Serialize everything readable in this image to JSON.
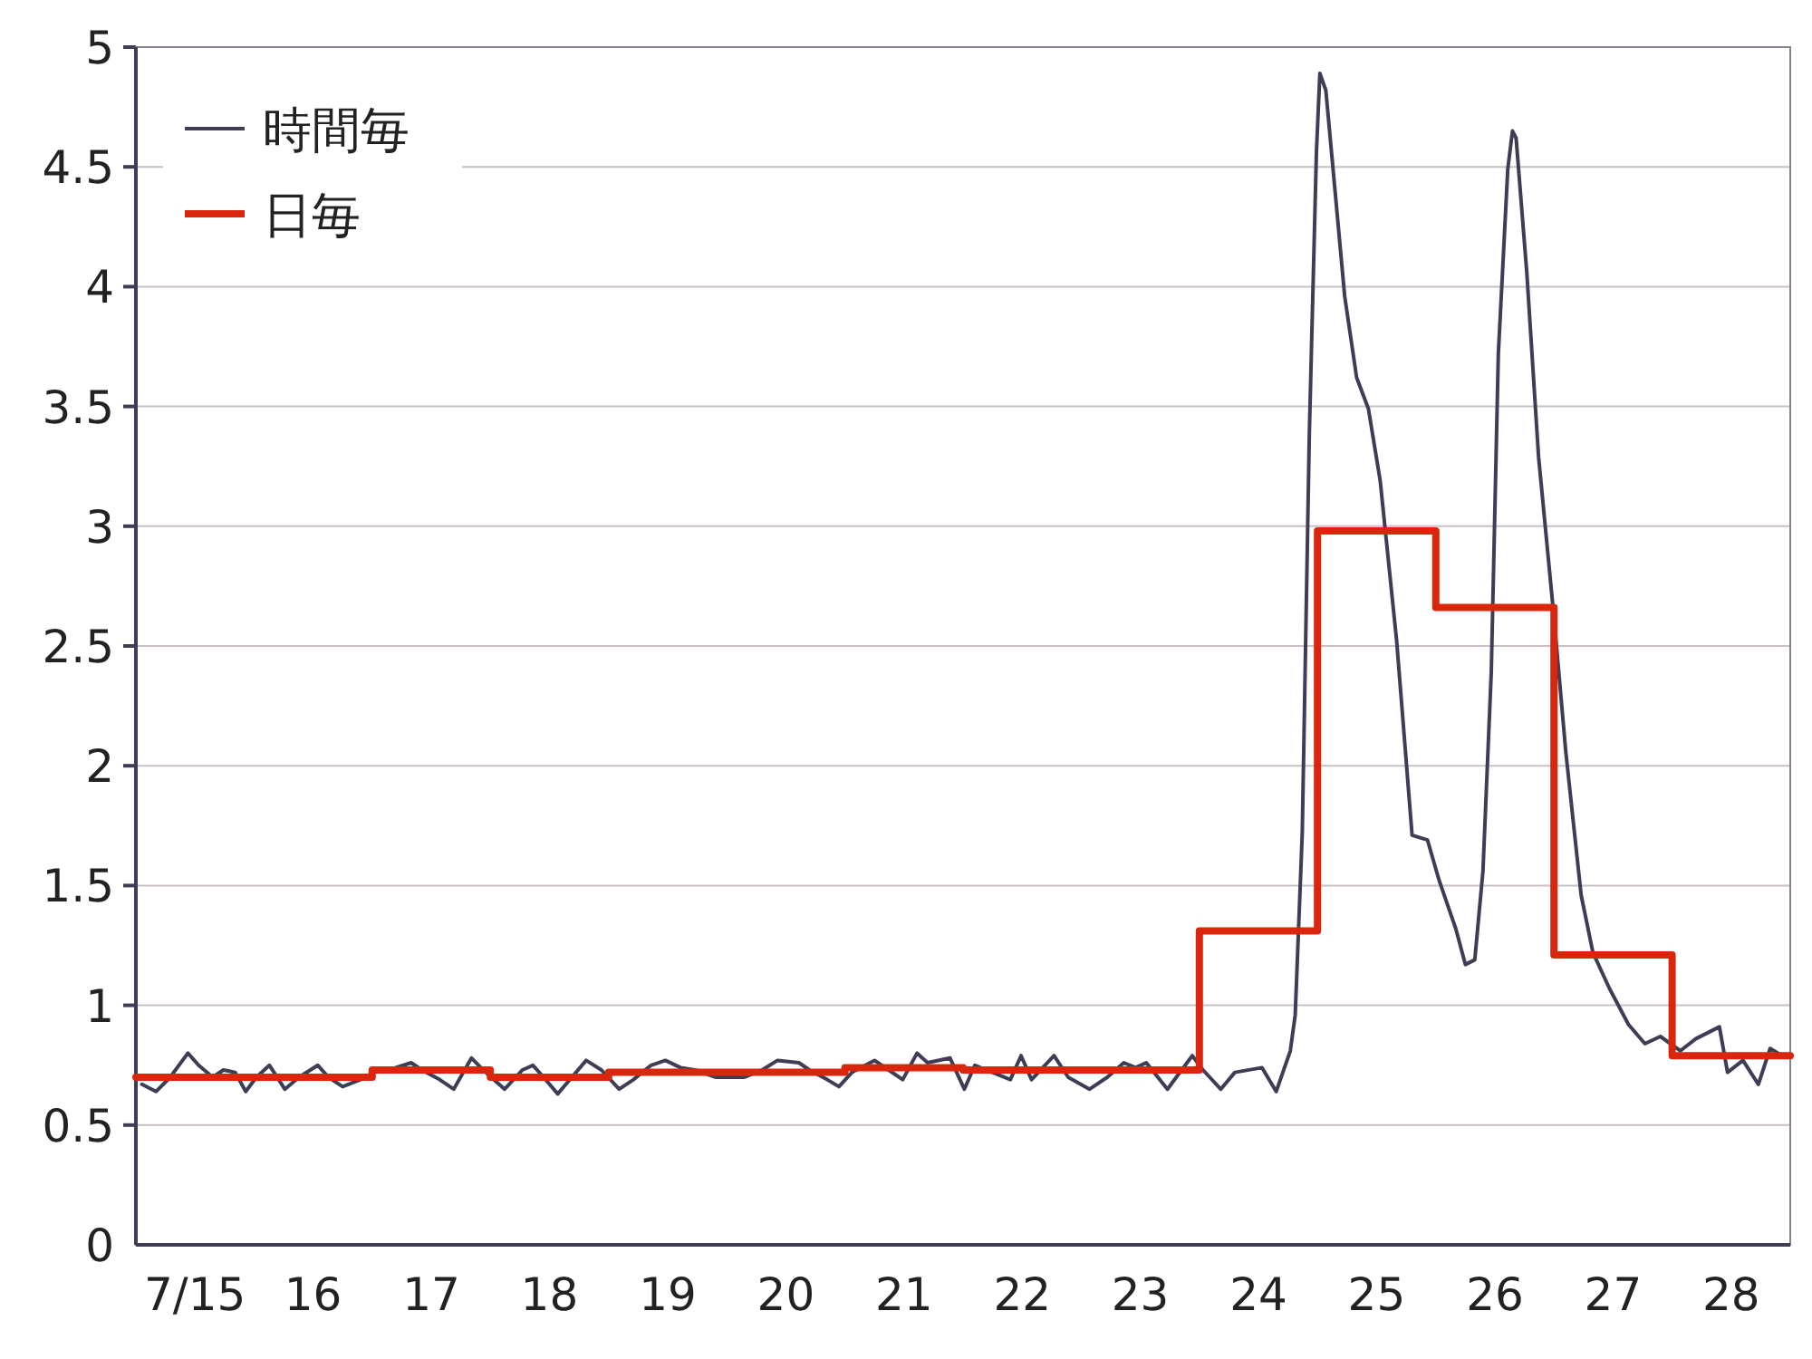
{
  "chart_data": {
    "type": "line",
    "legend": "top left",
    "grid": "y",
    "xlim": [
      15,
      29
    ],
    "ylim": [
      0,
      5
    ],
    "xticks": [
      {
        "value": 15.5,
        "label": "7/15"
      },
      {
        "value": 16.5,
        "label": "16"
      },
      {
        "value": 17.5,
        "label": "17"
      },
      {
        "value": 18.5,
        "label": "18"
      },
      {
        "value": 19.5,
        "label": "19"
      },
      {
        "value": 20.5,
        "label": "20"
      },
      {
        "value": 21.5,
        "label": "21"
      },
      {
        "value": 22.5,
        "label": "22"
      },
      {
        "value": 23.5,
        "label": "23"
      },
      {
        "value": 24.5,
        "label": "24"
      },
      {
        "value": 25.5,
        "label": "25"
      },
      {
        "value": 26.5,
        "label": "26"
      },
      {
        "value": 27.5,
        "label": "27"
      },
      {
        "value": 28.5,
        "label": "28"
      }
    ],
    "yticks": [
      0,
      0.5,
      1,
      1.5,
      2,
      2.5,
      3,
      3.5,
      4,
      4.5,
      5
    ],
    "series": [
      {
        "name": "時間毎",
        "type": "line",
        "color": "#3f3d56",
        "x": [
          15.05,
          15.17,
          15.29,
          15.44,
          15.53,
          15.65,
          15.74,
          15.84,
          15.93,
          16.02,
          16.13,
          16.26,
          16.38,
          16.54,
          16.63,
          16.75,
          16.9,
          17.02,
          17.14,
          17.33,
          17.42,
          17.57,
          17.69,
          17.84,
          17.96,
          18.12,
          18.27,
          18.36,
          18.45,
          18.57,
          18.69,
          18.81,
          18.94,
          19.09,
          19.21,
          19.36,
          19.48,
          19.61,
          19.73,
          19.91,
          20.15,
          20.3,
          20.43,
          20.61,
          20.7,
          20.85,
          20.95,
          21.06,
          21.25,
          21.37,
          21.49,
          21.61,
          21.7,
          21.89,
          22.01,
          22.1,
          22.4,
          22.49,
          22.58,
          22.77,
          22.89,
          23.07,
          23.22,
          23.36,
          23.46,
          23.55,
          23.73,
          23.85,
          23.94,
          24.03,
          24.18,
          24.3,
          24.53,
          24.65,
          24.77,
          24.81,
          24.87,
          24.93,
          24.99,
          25.02,
          25.07,
          25.15,
          25.23,
          25.33,
          25.43,
          25.53,
          25.67,
          25.8,
          25.93,
          26.03,
          26.17,
          26.25,
          26.33,
          26.4,
          26.47,
          26.53,
          26.61,
          26.65,
          26.68,
          26.77,
          26.87,
          27.0,
          27.1,
          27.23,
          27.33,
          27.47,
          27.63,
          27.77,
          27.9,
          28.07,
          28.2,
          28.4,
          28.47,
          28.6,
          28.73,
          28.83,
          28.93
        ],
        "values": [
          0.67,
          0.64,
          0.7,
          0.8,
          0.75,
          0.7,
          0.73,
          0.72,
          0.64,
          0.7,
          0.75,
          0.65,
          0.7,
          0.75,
          0.7,
          0.66,
          0.69,
          0.72,
          0.73,
          0.76,
          0.73,
          0.69,
          0.65,
          0.78,
          0.72,
          0.65,
          0.73,
          0.75,
          0.7,
          0.63,
          0.7,
          0.77,
          0.73,
          0.65,
          0.69,
          0.75,
          0.77,
          0.74,
          0.73,
          0.7,
          0.7,
          0.73,
          0.77,
          0.76,
          0.73,
          0.69,
          0.66,
          0.72,
          0.77,
          0.73,
          0.69,
          0.8,
          0.76,
          0.78,
          0.65,
          0.75,
          0.69,
          0.79,
          0.69,
          0.79,
          0.7,
          0.65,
          0.7,
          0.76,
          0.74,
          0.76,
          0.65,
          0.73,
          0.79,
          0.73,
          0.65,
          0.72,
          0.74,
          0.64,
          0.81,
          0.96,
          1.72,
          3.39,
          4.56,
          4.89,
          4.82,
          4.39,
          3.96,
          3.62,
          3.49,
          3.19,
          2.52,
          1.71,
          1.69,
          1.52,
          1.32,
          1.17,
          1.19,
          1.56,
          2.39,
          3.72,
          4.49,
          4.65,
          4.62,
          4.06,
          3.29,
          2.62,
          2.06,
          1.46,
          1.22,
          1.07,
          0.92,
          0.84,
          0.87,
          0.81,
          0.86,
          0.91,
          0.72,
          0.77,
          0.67,
          0.82,
          0.79
        ]
      },
      {
        "name": "日毎",
        "type": "step",
        "color": "#d9260c",
        "x": [
          15,
          16,
          17,
          18,
          19,
          20,
          21,
          22,
          23,
          24,
          25,
          26,
          27,
          28,
          29
        ],
        "values": [
          0.7,
          0.7,
          0.73,
          0.7,
          0.72,
          0.72,
          0.74,
          0.73,
          0.73,
          1.31,
          2.98,
          2.66,
          1.21,
          0.79,
          0.79
        ]
      }
    ]
  }
}
